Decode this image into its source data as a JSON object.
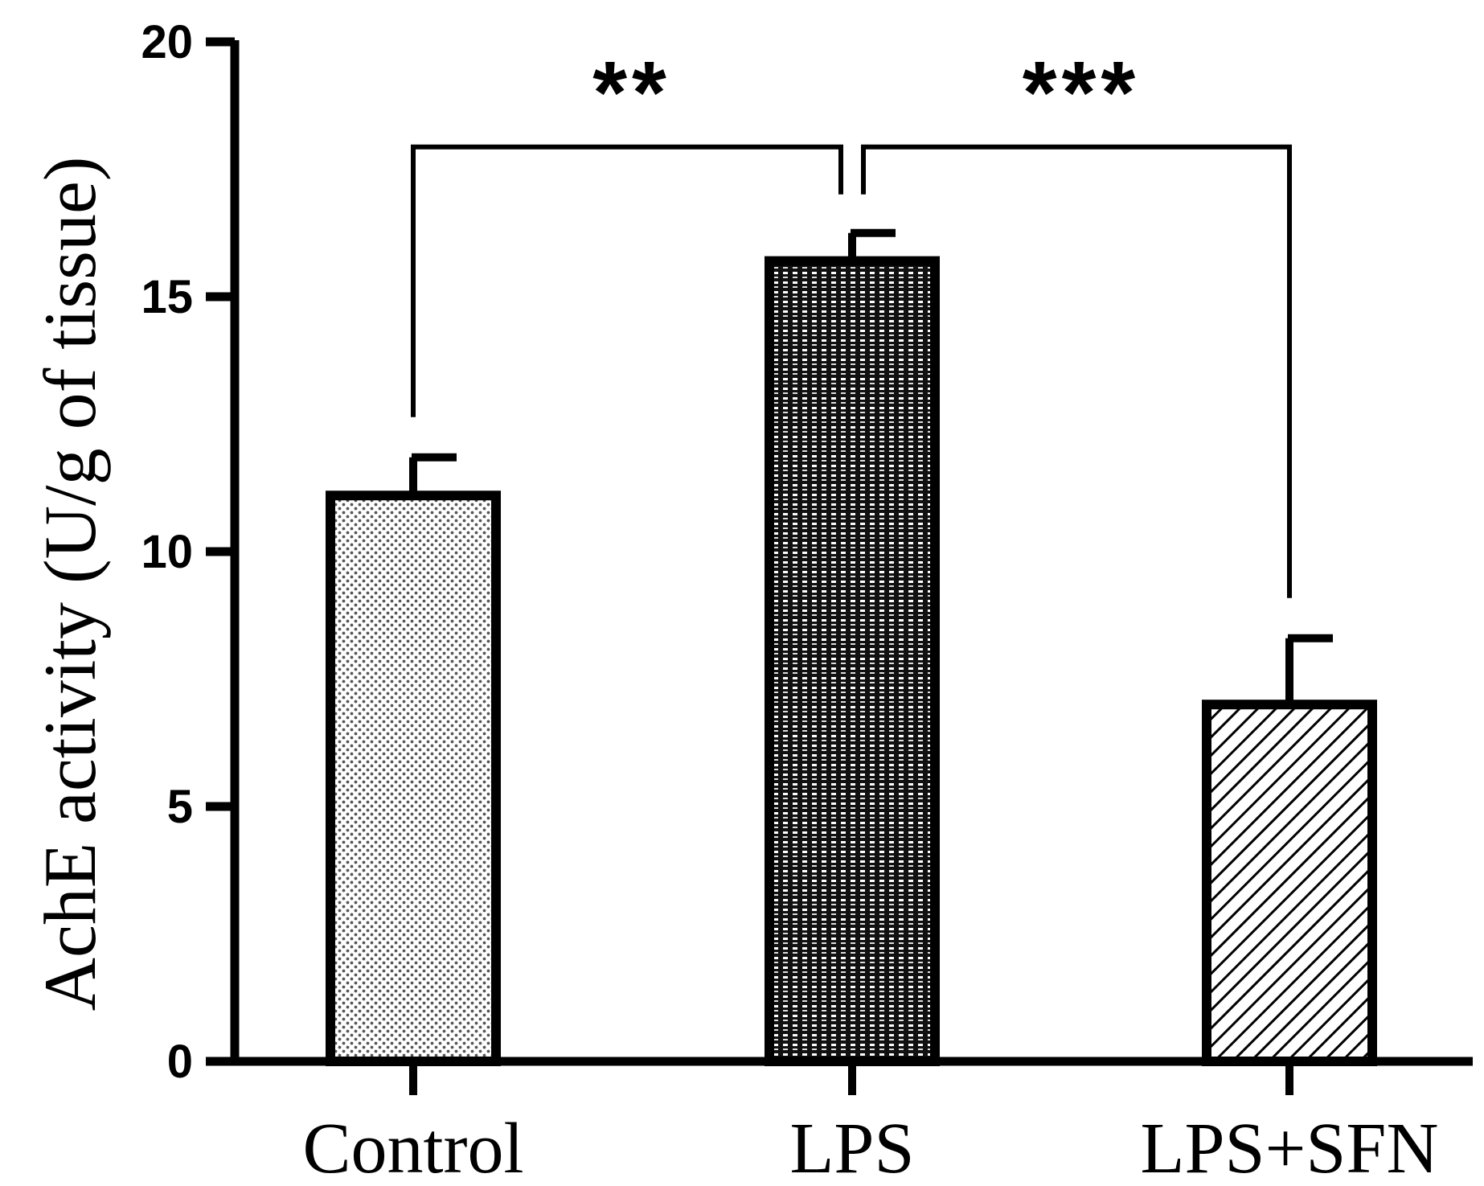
{
  "chart_data": {
    "type": "bar",
    "title": "",
    "xlabel": "",
    "ylabel": "AchE activity (U/g of tissue)",
    "ylim": [
      0,
      20
    ],
    "yticks": [
      0,
      5,
      10,
      15,
      20
    ],
    "ytick_labels": [
      "0",
      "5",
      "10",
      "15",
      "20"
    ],
    "grid": false,
    "categories": [
      "Control",
      "LPS",
      "LPS+SFN"
    ],
    "values": [
      11.1,
      15.7,
      7.0
    ],
    "errors": [
      0.75,
      0.55,
      1.3
    ],
    "fill_patterns": [
      "dots",
      "grid",
      "diagonal"
    ],
    "significance": [
      {
        "from": 0,
        "to": 1,
        "label": "**",
        "y": 18.0
      },
      {
        "from": 1,
        "to": 2,
        "label": "***",
        "y": 18.0
      }
    ],
    "colors": {
      "stroke": "#000000",
      "background": "#ffffff"
    }
  }
}
